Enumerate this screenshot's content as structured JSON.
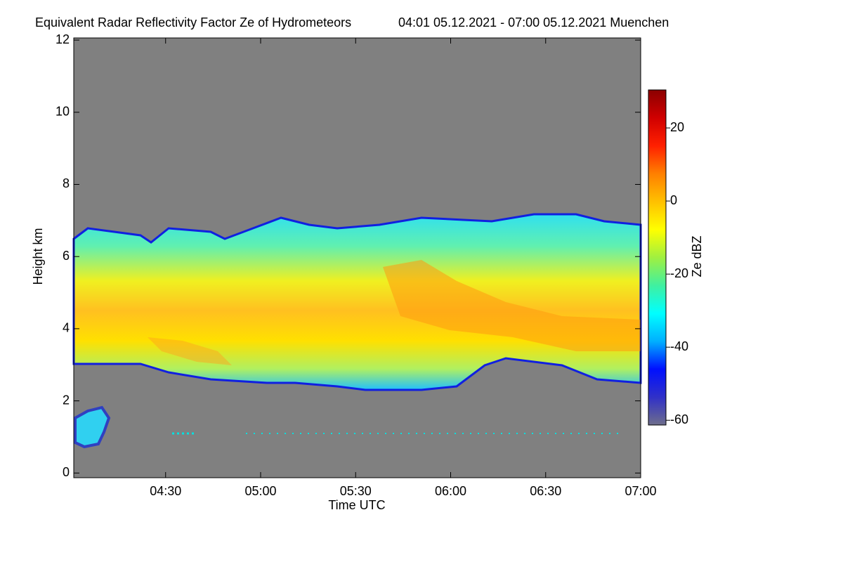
{
  "chart_data": {
    "type": "heatmap",
    "title": "Equivalent Radar Reflectivity Factor Ze of Hydrometeors",
    "subtitle": "04:01 05.12.2021 - 07:00 05.12.2021 Muenchen",
    "xlabel": "Time UTC",
    "ylabel": "Height km",
    "xlim": [
      241,
      420
    ],
    "xticks": [
      {
        "value": 270,
        "label": "04:30"
      },
      {
        "value": 300,
        "label": "05:00"
      },
      {
        "value": 330,
        "label": "05:30"
      },
      {
        "value": 360,
        "label": "06:00"
      },
      {
        "value": 390,
        "label": "06:30"
      },
      {
        "value": 420,
        "label": "07:00"
      }
    ],
    "ylim": [
      -0.13,
      12.06
    ],
    "yticks": [
      0,
      2,
      4,
      6,
      8,
      10,
      12
    ],
    "colorbar": {
      "label": "Ze dBZ",
      "clim": [
        -61.3,
        30.4
      ],
      "ticks": [
        20,
        0,
        -20,
        -40,
        -60
      ],
      "colormap": [
        "#6e6e8c",
        "#3030c8",
        "#0010ff",
        "#00b0ff",
        "#00ffff",
        "#40f0a0",
        "#a0f040",
        "#ffff00",
        "#ffc000",
        "#ff8000",
        "#ff2000",
        "#d00000",
        "#8b0000"
      ]
    },
    "background": "#808080"
  }
}
